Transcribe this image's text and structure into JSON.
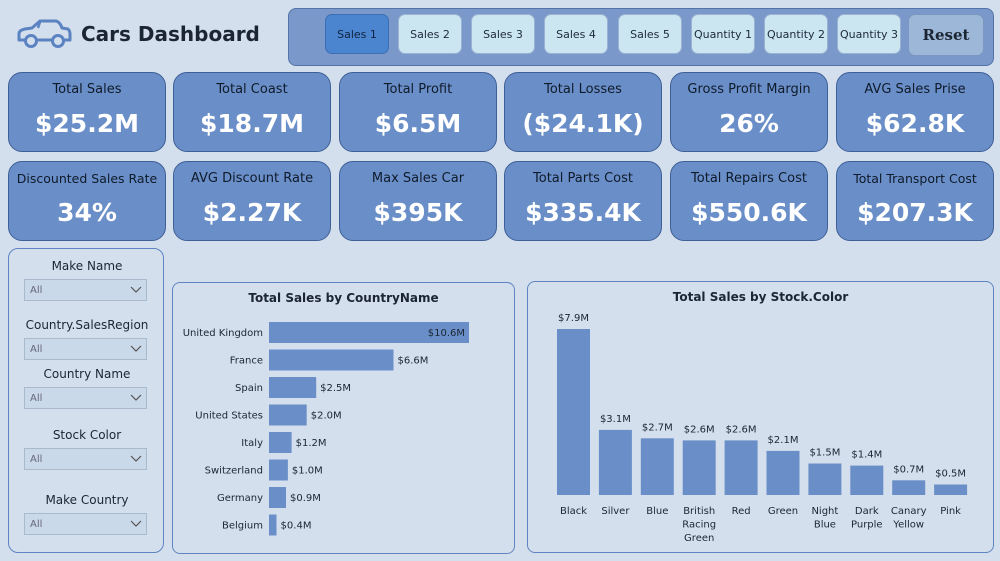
{
  "header": {
    "title": "Cars Dashboard",
    "logo_icon": "car-icon"
  },
  "nav": {
    "buttons": [
      {
        "label": "Sales 1",
        "active": true
      },
      {
        "label": "Sales 2",
        "active": false
      },
      {
        "label": "Sales 3",
        "active": false
      },
      {
        "label": "Sales 4",
        "active": false
      },
      {
        "label": "Sales 5",
        "active": false
      },
      {
        "label": "Quantity 1",
        "active": false
      },
      {
        "label": "Quantity 2",
        "active": false
      },
      {
        "label": "Quantity 3",
        "active": false
      }
    ],
    "reset_label": "Reset"
  },
  "kpis": {
    "row1": [
      {
        "label": "Total Sales",
        "value": "$25.2M"
      },
      {
        "label": "Total Coast",
        "value": "$18.7M"
      },
      {
        "label": "Total Profit",
        "value": "$6.5M"
      },
      {
        "label": "Total Losses",
        "value": "($24.1K)"
      },
      {
        "label": "Gross Profit Margin",
        "value": "26%"
      },
      {
        "label": "AVG Sales Prise",
        "value": "$62.8K"
      }
    ],
    "row2": [
      {
        "label": "Discounted Sales Rate",
        "value": "34%"
      },
      {
        "label": "AVG Discount Rate",
        "value": "$2.27K"
      },
      {
        "label": "Max Sales Car",
        "value": "$395K"
      },
      {
        "label": "Total Parts Cost",
        "value": "$335.4K"
      },
      {
        "label": "Total Repairs Cost",
        "value": "$550.6K"
      },
      {
        "label": "Total Transport Cost",
        "value": "$207.3K"
      }
    ]
  },
  "slicers": [
    {
      "label": "Make Name",
      "value": "All"
    },
    {
      "label": "Country.SalesRegion",
      "value": "All"
    },
    {
      "label": "Country Name",
      "value": "All"
    },
    {
      "label": "Stock Color",
      "value": "All"
    },
    {
      "label": "Make Country",
      "value": "All"
    }
  ],
  "colors": {
    "bar": "#6a8fc8",
    "card": "#6a8fc8",
    "background": "#d3dfec",
    "active_button": "#4b84cf"
  },
  "chart_data": [
    {
      "type": "bar",
      "orientation": "horizontal",
      "title": "Total Sales by CountryName",
      "categories": [
        "United Kingdom",
        "France",
        "Spain",
        "United States",
        "Italy",
        "Switzerland",
        "Germany",
        "Belgium"
      ],
      "values": [
        10.6,
        6.6,
        2.5,
        2.0,
        1.2,
        1.0,
        0.9,
        0.4
      ],
      "labels": [
        "$10.6M",
        "$6.6M",
        "$2.5M",
        "$2.0M",
        "$1.2M",
        "$1.0M",
        "$0.9M",
        "$0.4M"
      ],
      "unit": "M"
    },
    {
      "type": "bar",
      "orientation": "vertical",
      "title": "Total Sales by Stock.Color",
      "categories": [
        [
          "Black"
        ],
        [
          "Silver"
        ],
        [
          "Blue"
        ],
        [
          "British",
          "Racing",
          "Green"
        ],
        [
          "Red"
        ],
        [
          "Green"
        ],
        [
          "Night",
          "Blue"
        ],
        [
          "Dark",
          "Purple"
        ],
        [
          "Canary",
          "Yellow"
        ],
        [
          "Pink"
        ]
      ],
      "values": [
        7.9,
        3.1,
        2.7,
        2.6,
        2.6,
        2.1,
        1.5,
        1.4,
        0.7,
        0.5
      ],
      "labels": [
        "$7.9M",
        "$3.1M",
        "$2.7M",
        "$2.6M",
        "$2.6M",
        "$2.1M",
        "$1.5M",
        "$1.4M",
        "$0.7M",
        "$0.5M"
      ],
      "unit": "M"
    }
  ]
}
